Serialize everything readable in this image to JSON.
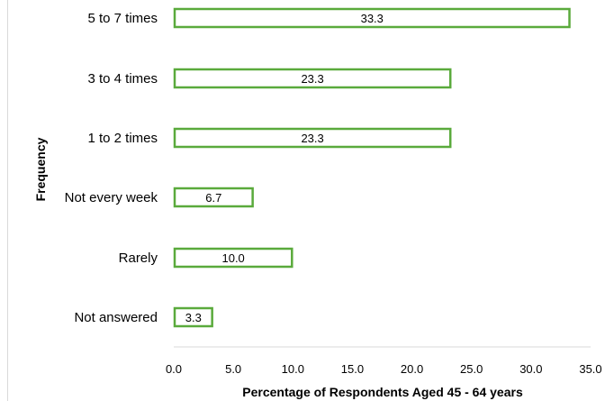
{
  "chart_data": {
    "type": "bar",
    "orientation": "horizontal",
    "categories": [
      "5 to 7 times",
      "3 to 4 times",
      "1 to 2 times",
      "Not every week",
      "Rarely",
      "Not answered"
    ],
    "values": [
      33.3,
      23.3,
      23.3,
      6.7,
      10.0,
      3.3
    ],
    "value_labels": [
      "33.3",
      "23.3",
      "23.3",
      "6.7",
      "10.0",
      "3.3"
    ],
    "xlabel": "Percentage of Respondents Aged 45 - 64 years",
    "ylabel": "Frequency",
    "xlim": [
      0,
      35
    ],
    "xticks": [
      "0.0",
      "5.0",
      "10.0",
      "15.0",
      "20.0",
      "25.0",
      "30.0",
      "35.0"
    ],
    "grid": false,
    "colors": {
      "bar_outline": "#5aaa3c",
      "bar_fill": "#ffffff",
      "axis": "#d9d9d9",
      "text": "#000000"
    }
  }
}
